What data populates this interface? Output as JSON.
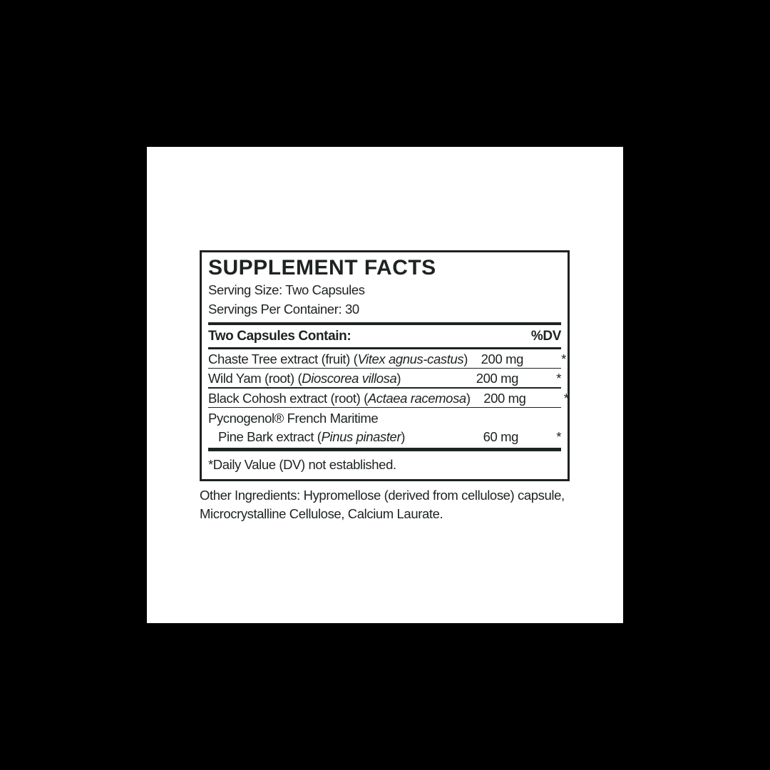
{
  "colors": {
    "backdrop": "#000000",
    "panel": "#ffffff",
    "ink": "#1d231f"
  },
  "supplement_facts": {
    "title": "SUPPLEMENT FACTS",
    "serving_size": "Serving Size: Two Capsules",
    "servings_per_container": "Servings Per Container: 30",
    "contains_header": "Two Capsules Contain:",
    "dv_header": "%DV",
    "ingredients": [
      {
        "prefix": "Chaste Tree extract (fruit) (",
        "latin": "Vitex agnus-castus",
        "suffix": ")",
        "amount": "200 mg",
        "dv": "*"
      },
      {
        "prefix": "Wild Yam (root) (",
        "latin": "Dioscorea villosa",
        "suffix": ")",
        "amount": "200 mg",
        "dv": "*"
      },
      {
        "prefix": "Black Cohosh extract (root) (",
        "latin": "Actaea racemosa",
        "suffix": ")",
        "amount": "200 mg",
        "dv": "*"
      },
      {
        "line1": "Pycnogenol® French Maritime",
        "prefix": "Pine Bark extract (",
        "latin": "Pinus pinaster",
        "suffix": ")",
        "amount": "60 mg",
        "dv": "*"
      }
    ],
    "footnote": "*Daily Value (DV) not established.",
    "other_ingredients": "Other Ingredients: Hypromellose (derived from cellulose) capsule, Microcrystalline Cellulose, Calcium Laurate."
  }
}
